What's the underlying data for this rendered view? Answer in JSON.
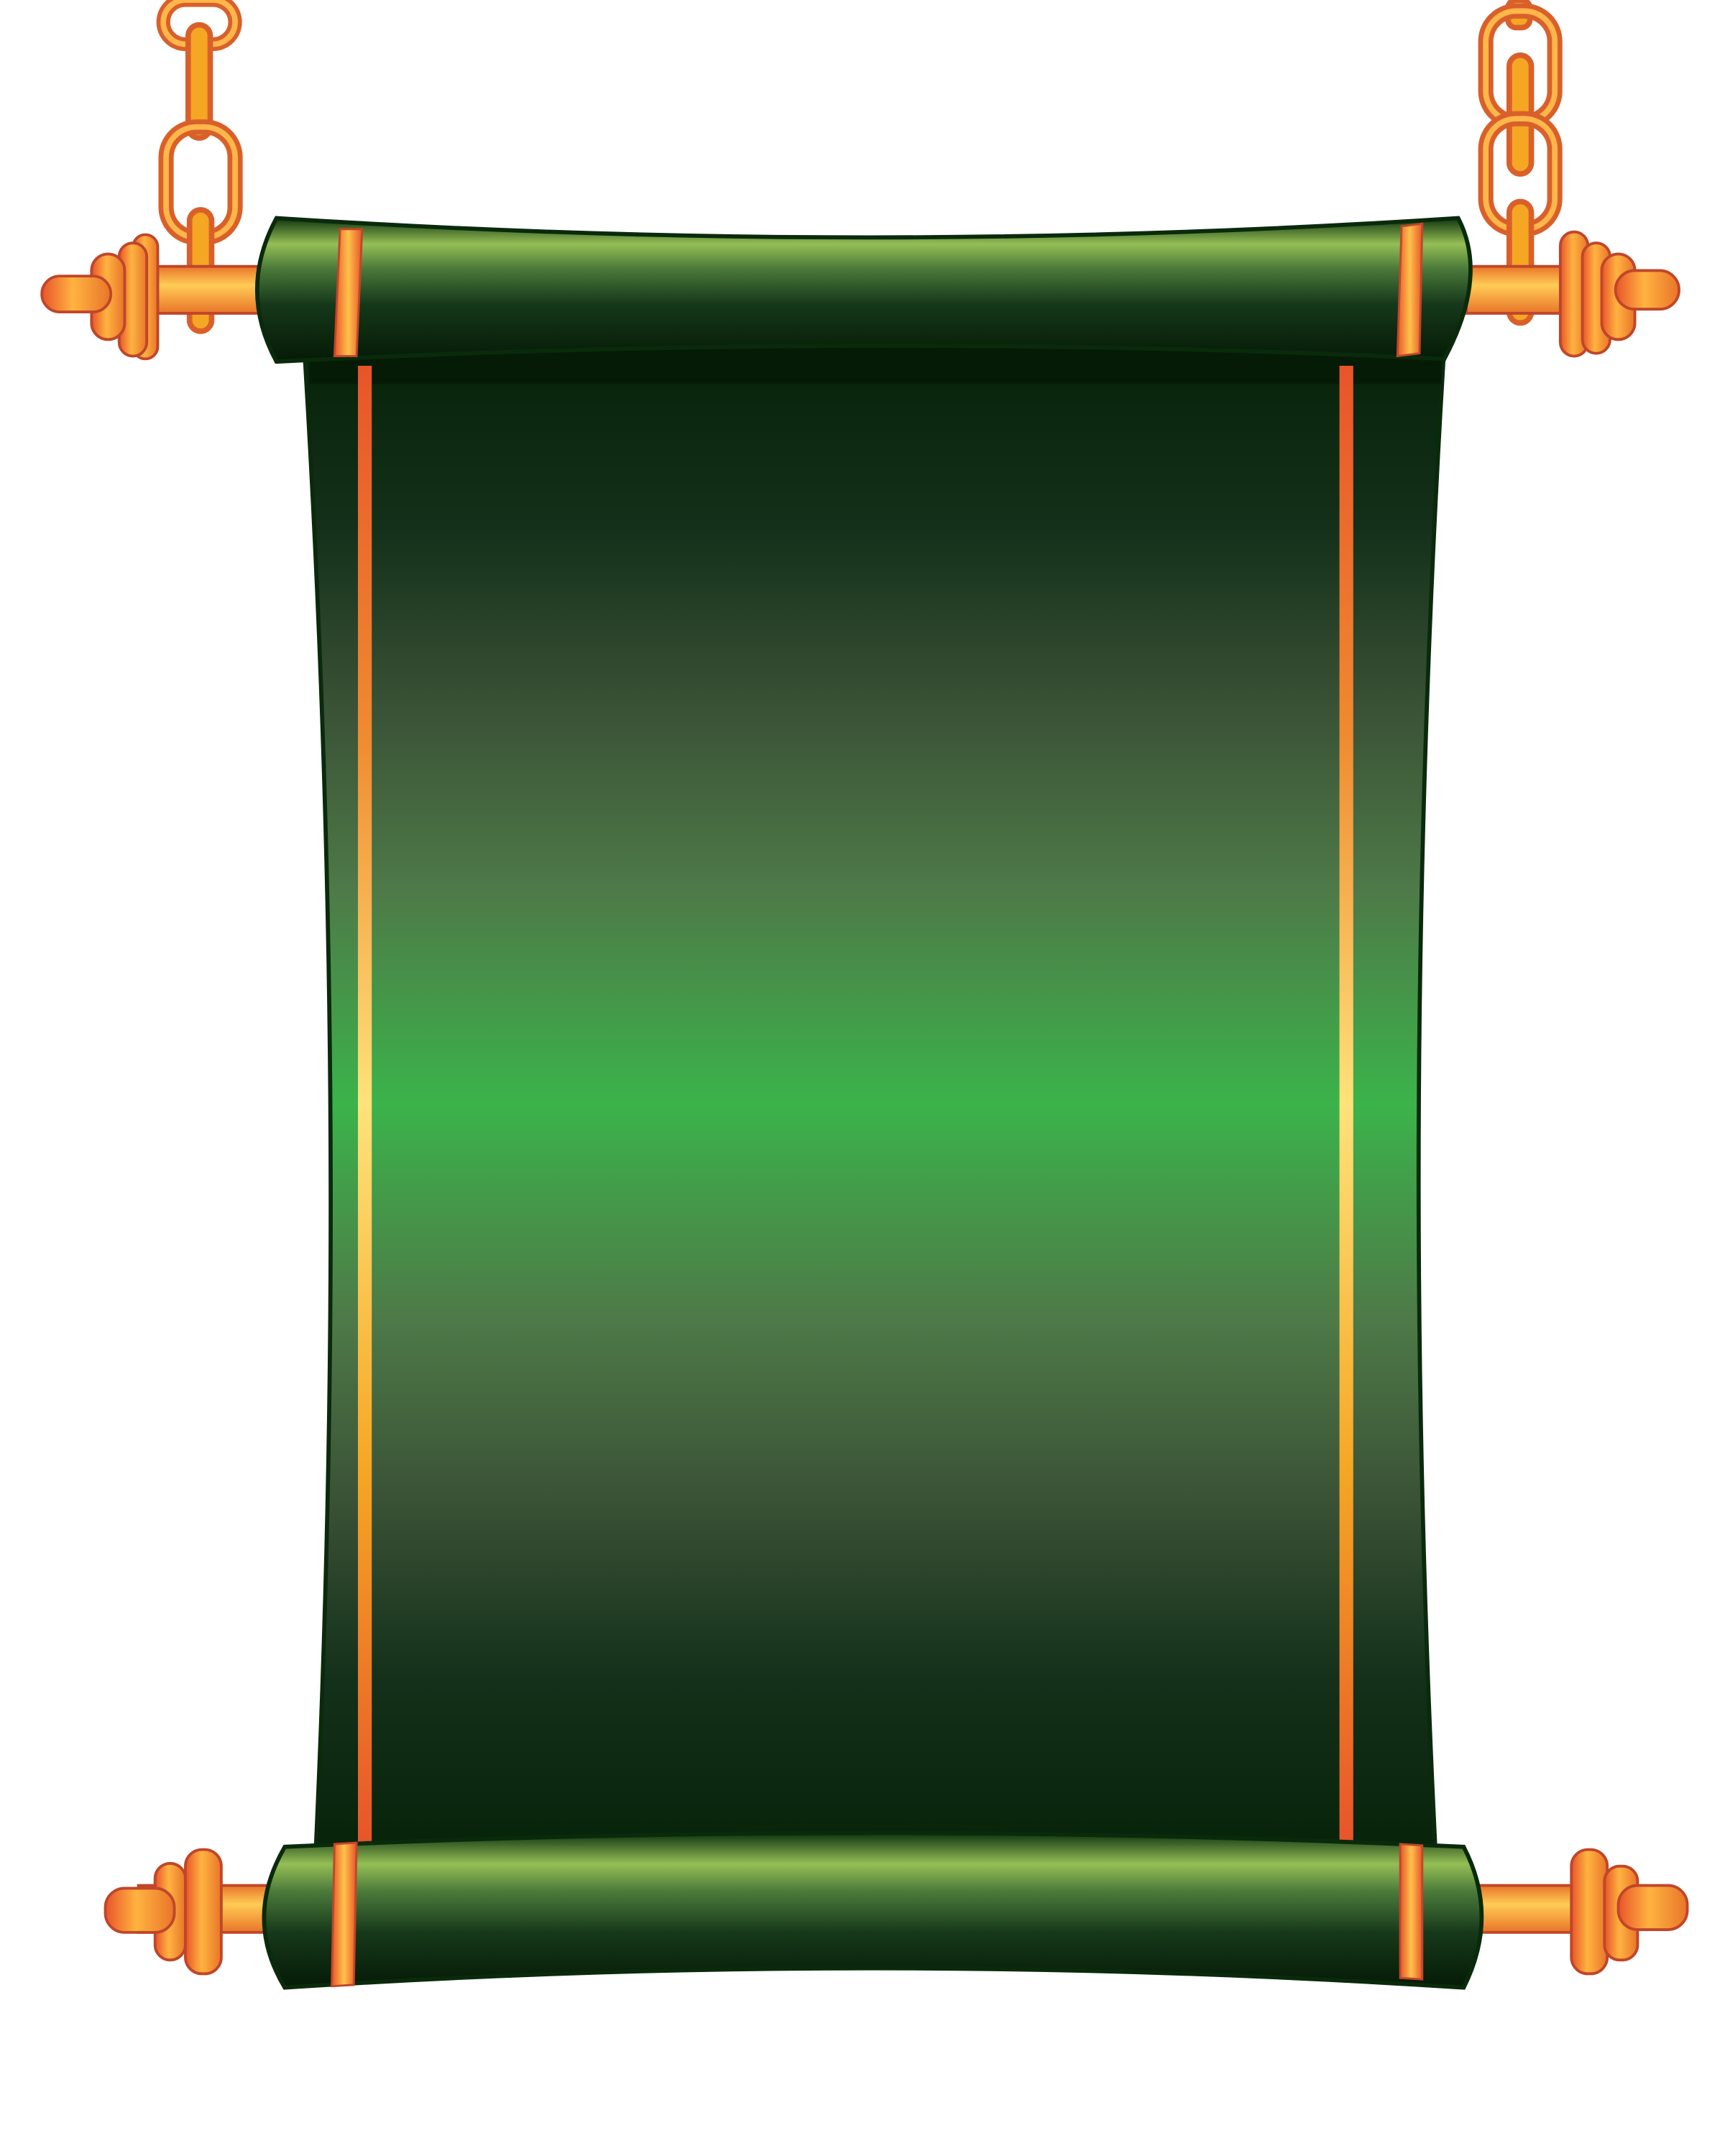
{
  "illustration": {
    "subject": "hanging-scroll-banner",
    "colors": {
      "background": "#ffffff",
      "panel_dark": "#062208",
      "panel_mid": "#4e6b45",
      "panel_light": "#3bb34a",
      "roller_highlight": "#95be55",
      "gold": "#f5a623",
      "gold_light": "#ffcc66",
      "orange_red": "#e8542a",
      "outline": "#0a2a0c"
    },
    "icons": [
      "chain-icon",
      "roller-knob-icon"
    ]
  }
}
